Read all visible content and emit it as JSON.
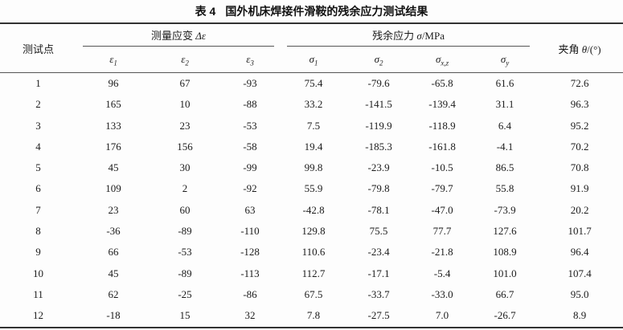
{
  "page": {
    "background": "#fdfdfd",
    "text_color": "#1c1c1c",
    "rule_color": "#333333"
  },
  "table": {
    "label": "表 4",
    "title": "国外机床焊接件滑鞍的残余应力测试结果",
    "col_point": "测试点",
    "group_strain": {
      "text": "测量应变",
      "symbol": "Δε"
    },
    "group_stress": {
      "text": "残余应力",
      "symbol": "σ",
      "unit": "/MPa"
    },
    "col_angle": {
      "text": "夹角",
      "symbol": "θ",
      "unit": "/(°)"
    },
    "subheaders": [
      {
        "base": "ε",
        "sub": "1"
      },
      {
        "base": "ε",
        "sub": "2"
      },
      {
        "base": "ε",
        "sub": "3"
      },
      {
        "base": "σ",
        "sub": "1"
      },
      {
        "base": "σ",
        "sub": "2"
      },
      {
        "base": "σ",
        "sub": "x,z"
      },
      {
        "base": "σ",
        "sub": "y"
      }
    ],
    "col_keys": [
      "test-point",
      "epsilon-1",
      "epsilon-2",
      "epsilon-3",
      "sigma-1",
      "sigma-2",
      "sigma-xz",
      "sigma-y",
      "angle"
    ],
    "rows": [
      [
        "1",
        "96",
        "67",
        "-93",
        "75.4",
        "-79.6",
        "-65.8",
        "61.6",
        "72.6"
      ],
      [
        "2",
        "165",
        "10",
        "-88",
        "33.2",
        "-141.5",
        "-139.4",
        "31.1",
        "96.3"
      ],
      [
        "3",
        "133",
        "23",
        "-53",
        "7.5",
        "-119.9",
        "-118.9",
        "6.4",
        "95.2"
      ],
      [
        "4",
        "176",
        "156",
        "-58",
        "19.4",
        "-185.3",
        "-161.8",
        "-4.1",
        "70.2"
      ],
      [
        "5",
        "45",
        "30",
        "-99",
        "99.8",
        "-23.9",
        "-10.5",
        "86.5",
        "70.8"
      ],
      [
        "6",
        "109",
        "2",
        "-92",
        "55.9",
        "-79.8",
        "-79.7",
        "55.8",
        "91.9"
      ],
      [
        "7",
        "23",
        "60",
        "63",
        "-42.8",
        "-78.1",
        "-47.0",
        "-73.9",
        "20.2"
      ],
      [
        "8",
        "-36",
        "-89",
        "-110",
        "129.8",
        "75.5",
        "77.7",
        "127.6",
        "101.7"
      ],
      [
        "9",
        "66",
        "-53",
        "-128",
        "110.6",
        "-23.4",
        "-21.8",
        "108.9",
        "96.4"
      ],
      [
        "10",
        "45",
        "-89",
        "-113",
        "112.7",
        "-17.1",
        "-5.4",
        "101.0",
        "107.4"
      ],
      [
        "11",
        "62",
        "-25",
        "-86",
        "67.5",
        "-33.7",
        "-33.0",
        "66.7",
        "95.0"
      ],
      [
        "12",
        "-18",
        "15",
        "32",
        "7.8",
        "-27.5",
        "7.0",
        "-26.7",
        "8.9"
      ]
    ]
  }
}
